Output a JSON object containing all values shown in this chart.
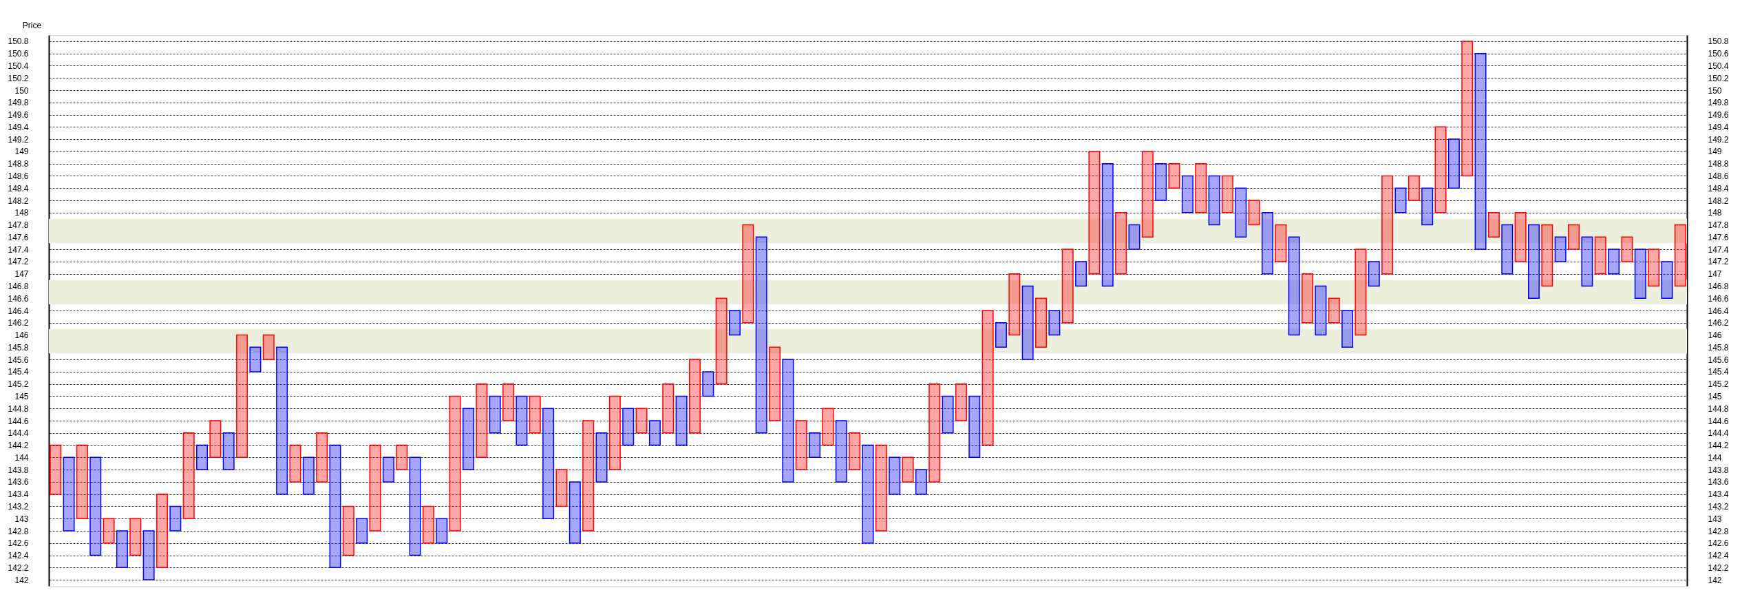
{
  "chart_data": {
    "type": "bar",
    "ylabel": "Price",
    "categories": [
      null,
      null,
      null,
      null,
      null,
      null,
      null,
      null,
      null,
      null,
      null,
      null,
      null,
      null,
      null,
      null,
      null,
      null,
      null,
      null,
      null,
      null,
      null,
      null,
      null,
      null,
      null,
      null,
      null,
      null,
      null,
      null,
      null,
      null,
      null,
      null,
      null,
      null,
      null,
      null,
      null,
      null,
      null,
      null,
      null,
      null,
      null,
      null,
      null,
      null,
      null,
      null,
      null,
      null,
      null,
      null,
      null,
      null,
      null,
      null,
      null,
      null,
      null,
      null,
      null,
      null,
      null,
      null,
      null,
      null,
      null,
      null,
      null,
      null,
      null,
      null,
      null,
      null,
      null,
      null,
      null,
      null,
      null,
      null,
      null,
      null,
      null,
      null,
      null,
      null,
      null,
      null,
      null,
      null,
      null,
      null,
      null,
      null,
      null,
      null,
      null,
      null,
      null,
      null,
      null,
      null,
      null,
      null,
      null,
      null,
      null,
      null,
      null,
      null,
      null,
      null,
      null,
      null,
      null,
      null,
      null,
      null,
      null
    ],
    "base": [
      143.4,
      142.8,
      143,
      142.4,
      142.6,
      142.2,
      142.4,
      142,
      142.2,
      142.8,
      143,
      143.8,
      144,
      143.8,
      144,
      145.4,
      145.6,
      143.4,
      143.6,
      143.4,
      143.6,
      142.2,
      142.4,
      142.6,
      142.8,
      143.6,
      143.8,
      142.4,
      142.6,
      142.6,
      142.8,
      143.8,
      144,
      144.4,
      144.6,
      144.2,
      144.4,
      143,
      143.2,
      142.6,
      142.8,
      143.6,
      143.8,
      144.2,
      144.4,
      144.2,
      144.4,
      144.2,
      144.4,
      145,
      145.2,
      146,
      146.2,
      144.4,
      144.6,
      143.6,
      143.8,
      144,
      144.2,
      143.6,
      143.8,
      142.6,
      142.8,
      143.4,
      143.6,
      143.4,
      143.6,
      144.4,
      144.6,
      144,
      144.2,
      145.8,
      146,
      145.6,
      145.8,
      146,
      146.2,
      146.8,
      147,
      146.8,
      147,
      147.4,
      147.6,
      148.2,
      148.4,
      148,
      148,
      147.8,
      148,
      147.6,
      147.8,
      147,
      147.2,
      146,
      146.2,
      146,
      146.2,
      145.8,
      146,
      146.8,
      147,
      148,
      148.2,
      147.8,
      148,
      148.4,
      148.6,
      147.4,
      147.6,
      147,
      147.2,
      146.6,
      146.8,
      147.2,
      147.4,
      146.8,
      147,
      147,
      147.2,
      146.6,
      146.8,
      146.6,
      146.8
    ],
    "values": [
      0.8,
      1.2,
      1.2,
      1.6,
      0.4,
      0.6,
      0.6,
      0.8,
      1.2,
      0.4,
      1.4,
      0.4,
      0.6,
      0.6,
      2,
      0.4,
      0.4,
      2.4,
      0.6,
      0.6,
      0.8,
      2,
      0.8,
      0.4,
      1.4,
      0.4,
      0.4,
      1.6,
      0.6,
      0.4,
      2.2,
      1,
      1.2,
      0.6,
      0.6,
      0.8,
      0.6,
      1.8,
      0.6,
      1,
      1.8,
      0.8,
      1.2,
      0.6,
      0.4,
      0.4,
      0.8,
      0.8,
      1.2,
      0.4,
      1.4,
      0.4,
      1.6,
      3.2,
      1.2,
      2,
      0.8,
      0.4,
      0.6,
      1,
      0.6,
      1.6,
      1.4,
      0.6,
      0.4,
      0.4,
      1.6,
      0.6,
      0.6,
      1,
      2.2,
      0.4,
      1,
      1.2,
      0.8,
      0.4,
      1.2,
      0.4,
      2,
      2,
      1,
      0.4,
      1.4,
      0.6,
      0.4,
      0.6,
      0.8,
      0.8,
      0.6,
      0.8,
      0.4,
      1,
      0.6,
      1.6,
      0.8,
      0.8,
      0.4,
      0.6,
      1.4,
      0.4,
      1.6,
      0.4,
      0.4,
      0.6,
      1.4,
      0.8,
      2.2,
      3.2,
      0.4,
      0.8,
      0.8,
      1.2,
      1,
      0.4,
      0.4,
      0.8,
      0.6,
      0.4,
      0.4,
      0.8,
      0.6,
      0.6,
      1
    ],
    "colors": [
      "#ff0000",
      "#0000ff",
      "#ff0000",
      "#0000ff",
      "#ff0000",
      "#0000ff",
      "#ff0000",
      "#0000ff",
      "#ff0000",
      "#0000ff",
      "#ff0000",
      "#0000ff",
      "#ff0000",
      "#0000ff",
      "#ff0000",
      "#0000ff",
      "#ff0000",
      "#0000ff",
      "#ff0000",
      "#0000ff",
      "#ff0000",
      "#0000ff",
      "#ff0000",
      "#0000ff",
      "#ff0000",
      "#0000ff",
      "#ff0000",
      "#0000ff",
      "#ff0000",
      "#0000ff",
      "#ff0000",
      "#0000ff",
      "#ff0000",
      "#0000ff",
      "#ff0000",
      "#0000ff",
      "#ff0000",
      "#0000ff",
      "#ff0000",
      "#0000ff",
      "#ff0000",
      "#0000ff",
      "#ff0000",
      "#0000ff",
      "#ff0000",
      "#0000ff",
      "#ff0000",
      "#0000ff",
      "#ff0000",
      "#0000ff",
      "#ff0000",
      "#0000ff",
      "#ff0000",
      "#0000ff",
      "#ff0000",
      "#0000ff",
      "#ff0000",
      "#0000ff",
      "#ff0000",
      "#0000ff",
      "#ff0000",
      "#0000ff",
      "#ff0000",
      "#0000ff",
      "#ff0000",
      "#0000ff",
      "#ff0000",
      "#0000ff",
      "#ff0000",
      "#0000ff",
      "#ff0000",
      "#0000ff",
      "#ff0000",
      "#0000ff",
      "#ff0000",
      "#0000ff",
      "#ff0000",
      "#0000ff",
      "#ff0000",
      "#0000ff",
      "#ff0000",
      "#0000ff",
      "#ff0000",
      "#0000ff",
      "#ff0000",
      "#0000ff",
      "#ff0000",
      "#0000ff",
      "#ff0000",
      "#0000ff",
      "#ff0000",
      "#0000ff",
      "#ff0000",
      "#0000ff",
      "#ff0000",
      "#0000ff",
      "#ff0000",
      "#0000ff",
      "#ff0000",
      "#0000ff",
      "#ff0000",
      "#0000ff",
      "#ff0000",
      "#0000ff",
      "#ff0000",
      "#0000ff",
      "#ff0000",
      "#0000ff",
      "#ff0000",
      "#0000ff",
      "#ff0000",
      "#0000ff",
      "#ff0000",
      "#0000ff",
      "#ff0000",
      "#0000ff",
      "#ff0000",
      "#0000ff",
      "#ff0000",
      "#0000ff",
      "#ff0000",
      "#0000ff",
      "#ff0000"
    ],
    "ylim": [
      141.9,
      150.9
    ],
    "yticks": [
      142,
      142.2,
      142.4,
      142.6,
      142.8,
      143,
      143.2,
      143.4,
      143.6,
      143.8,
      144,
      144.2,
      144.4,
      144.6,
      144.8,
      145,
      145.2,
      145.4,
      145.6,
      145.8,
      146,
      146.2,
      146.4,
      146.6,
      146.8,
      147,
      147.2,
      147.4,
      147.6,
      147.8,
      148,
      148.2,
      148.4,
      148.6,
      148.8,
      149,
      149.2,
      149.4,
      149.6,
      149.8,
      150,
      150.2,
      150.4,
      150.6,
      150.8
    ],
    "y2lim": [
      141.9,
      150.9
    ],
    "y2ticks": [
      142,
      142.2,
      142.4,
      142.6,
      142.8,
      143,
      143.2,
      143.4,
      143.6,
      143.8,
      144,
      144.2,
      144.4,
      144.6,
      144.8,
      145,
      145.2,
      145.4,
      145.6,
      145.8,
      146,
      146.2,
      146.4,
      146.6,
      146.8,
      147,
      147.2,
      147.4,
      147.6,
      147.8,
      148,
      148.2,
      148.4,
      148.6,
      148.8,
      149,
      149.2,
      149.4,
      149.6,
      149.8,
      150,
      150.2,
      150.4,
      150.6,
      150.8
    ],
    "bands": [
      {
        "axis": "y",
        "from": 147.5,
        "to": 147.9,
        "color": "#ebefdc"
      },
      {
        "axis": "y",
        "from": 146.5,
        "to": 146.9,
        "color": "#ebefdc"
      },
      {
        "axis": "y",
        "from": 145.7,
        "to": 146.1,
        "color": "#ebefdc"
      }
    ],
    "grid": "y"
  }
}
